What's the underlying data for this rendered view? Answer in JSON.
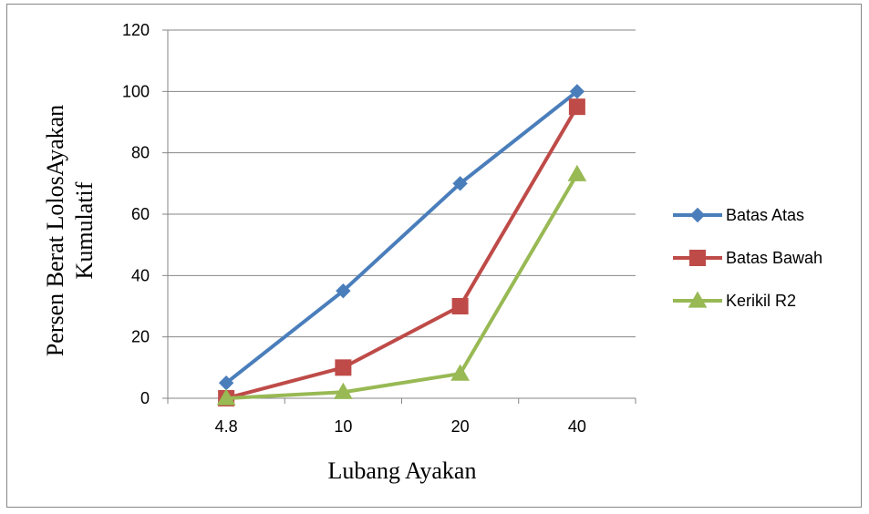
{
  "chart_data": {
    "type": "line",
    "categories": [
      "4.8",
      "10",
      "20",
      "40"
    ],
    "series": [
      {
        "name": "Batas Atas",
        "values": [
          5,
          35,
          70,
          100
        ],
        "color": "#4a7ebb",
        "marker": "diamond"
      },
      {
        "name": "Batas Bawah",
        "values": [
          0,
          10,
          30,
          95
        ],
        "color": "#be4b48",
        "marker": "square"
      },
      {
        "name": "Kerikil R2",
        "values": [
          0,
          2,
          8,
          73
        ],
        "color": "#98b954",
        "marker": "triangle"
      }
    ],
    "xlabel": "Lubang Ayakan",
    "ylabel_line1": "Persen Berat LolosAyakan",
    "ylabel_line2": "Kumulatif",
    "ylim": [
      0,
      120
    ],
    "yticks": [
      0,
      20,
      40,
      60,
      80,
      100,
      120
    ],
    "grid": true,
    "legend_position": "right"
  }
}
